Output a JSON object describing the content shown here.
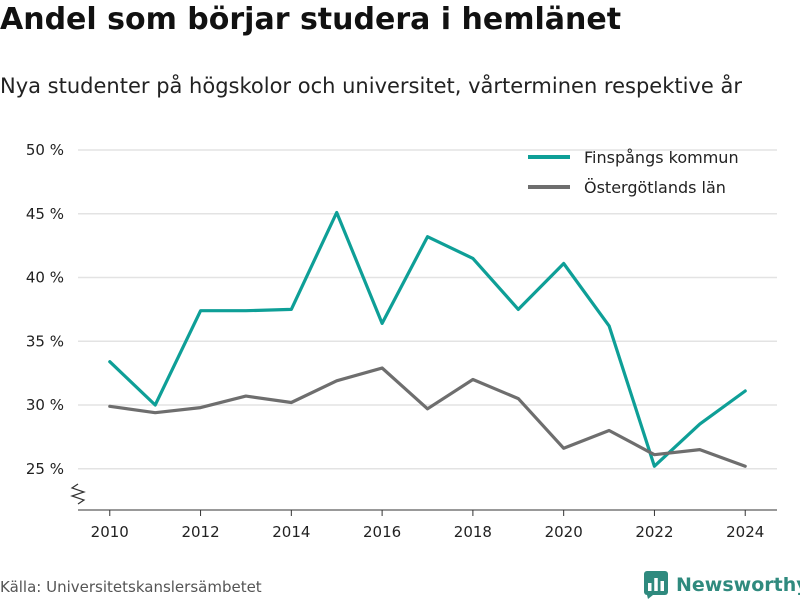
{
  "header": {
    "title": "Andel som börjar studera i hemlänet",
    "subtitle": "Nya studenter på högskolor och universitet, vårterminen respektive år"
  },
  "footer": {
    "source": "Källa: Universitetskanslersämbetet",
    "brand": "Newsworthy"
  },
  "colors": {
    "finspang": "#0e9f97",
    "ostergotland": "#6e6e6e",
    "grid": "#e3e3e3",
    "axis": "#333333",
    "brand": "#2f8a7e"
  },
  "icons": {
    "brand_logo": "bar-chart-icon",
    "axis_break": "zigzag-axis-break-icon"
  },
  "chart_data": {
    "type": "line",
    "title": "Andel som börjar studera i hemlänet",
    "subtitle": "Nya studenter på högskolor och universitet, vårterminen respektive år",
    "x": [
      2010,
      2011,
      2012,
      2013,
      2014,
      2015,
      2016,
      2017,
      2018,
      2019,
      2020,
      2021,
      2022,
      2023,
      2024
    ],
    "x_ticks": [
      2010,
      2012,
      2014,
      2016,
      2018,
      2020,
      2022,
      2024
    ],
    "x_tick_labels": [
      "2010",
      "2012",
      "2014",
      "2016",
      "2018",
      "2020",
      "2022",
      "2024"
    ],
    "y_ticks": [
      25,
      30,
      35,
      40,
      45,
      50
    ],
    "y_tick_labels": [
      "25 %",
      "30 %",
      "35 %",
      "40 %",
      "45 %",
      "50 %"
    ],
    "ylim": [
      22,
      50
    ],
    "xlim": [
      2009.3,
      2024.7
    ],
    "grid": true,
    "axis_break": true,
    "legend_position": "top-right",
    "series": [
      {
        "name": "Finspångs kommun",
        "values": [
          33.4,
          30.0,
          37.4,
          37.4,
          37.5,
          45.1,
          36.4,
          43.2,
          41.5,
          37.5,
          41.1,
          36.2,
          25.2,
          28.5,
          31.1
        ]
      },
      {
        "name": "Östergötlands län",
        "values": [
          29.9,
          29.4,
          29.8,
          30.7,
          30.2,
          31.9,
          32.9,
          29.7,
          32.0,
          30.5,
          26.6,
          28.0,
          26.1,
          26.5,
          25.2
        ]
      }
    ]
  }
}
